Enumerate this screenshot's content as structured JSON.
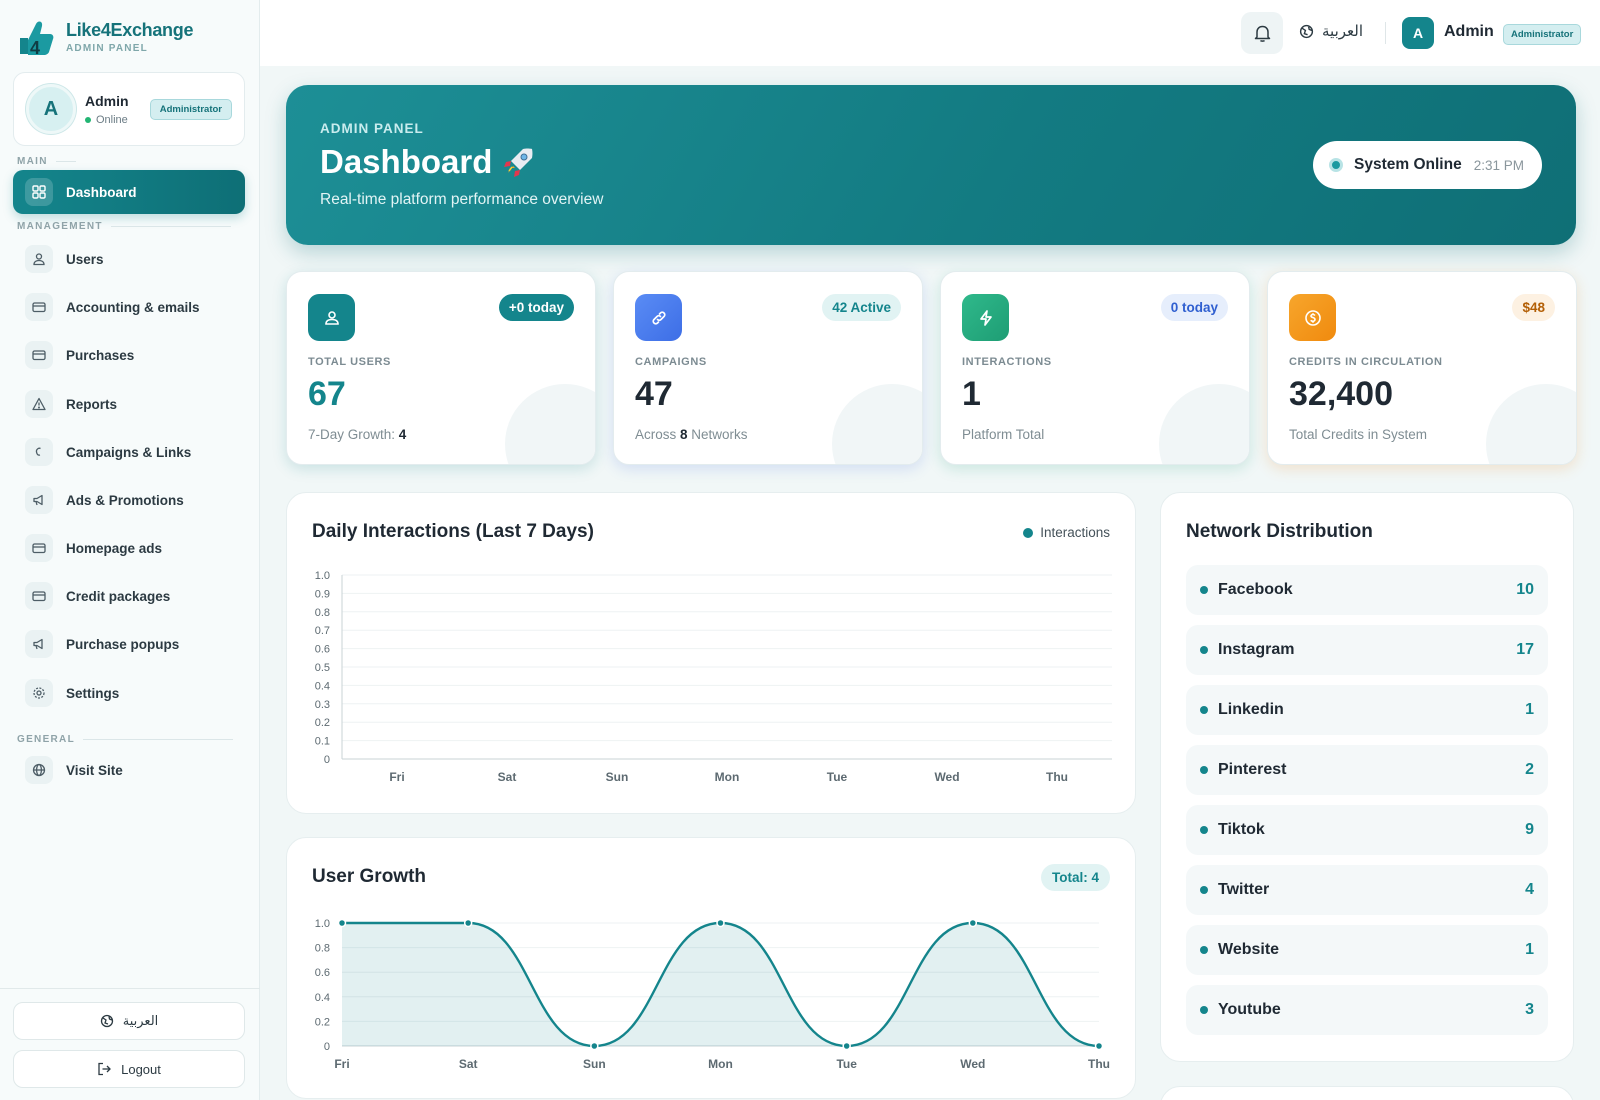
{
  "brand": {
    "name": "Like4Exchange",
    "subtitle": "ADMIN PANEL"
  },
  "profile": {
    "initial": "A",
    "name": "Admin",
    "status": "Online",
    "role": "Administrator"
  },
  "sidebar": {
    "section_main": "MAIN",
    "section_management": "MANAGEMENT",
    "section_general": "GENERAL",
    "items": [
      {
        "label": "Dashboard",
        "icon": "grid-icon",
        "active": true
      },
      {
        "label": "Users",
        "icon": "users-icon"
      },
      {
        "label": "Accounting & emails",
        "icon": "card-icon"
      },
      {
        "label": "Purchases",
        "icon": "card-icon"
      },
      {
        "label": "Reports",
        "icon": "alert-icon"
      },
      {
        "label": "Campaigns & Links",
        "icon": "link-icon"
      },
      {
        "label": "Ads & Promotions",
        "icon": "megaphone-icon"
      },
      {
        "label": "Homepage ads",
        "icon": "card-icon"
      },
      {
        "label": "Credit packages",
        "icon": "card-icon"
      },
      {
        "label": "Purchase popups",
        "icon": "megaphone-icon"
      },
      {
        "label": "Settings",
        "icon": "gear-icon"
      },
      {
        "label": "Visit Site",
        "icon": "globe-icon"
      }
    ],
    "lang_button": "العربية",
    "logout_button": "Logout"
  },
  "topbar": {
    "lang": "العربية",
    "user_initial": "A",
    "user_name": "Admin",
    "role": "Administrator"
  },
  "hero": {
    "kicker": "ADMIN PANEL",
    "title": "Dashboard",
    "subtitle": "Real-time platform performance overview",
    "status_label": "System Online",
    "status_time": "2:31 PM"
  },
  "stats": [
    {
      "label": "TOTAL USERS",
      "value": "67",
      "badge": "+0 today",
      "foot_prefix": "7-Day Growth: ",
      "foot_bold": "4",
      "foot_suffix": "",
      "icon": "users-icon",
      "accent": "#14858c"
    },
    {
      "label": "CAMPAIGNS",
      "value": "47",
      "badge": "42 Active",
      "foot_prefix": "Across ",
      "foot_bold": "8",
      "foot_suffix": " Networks",
      "icon": "link-icon",
      "accent": "#4a7cf0"
    },
    {
      "label": "INTERACTIONS",
      "value": "1",
      "badge": "0 today",
      "foot_prefix": "Platform Total",
      "foot_bold": "",
      "foot_suffix": "",
      "icon": "bolt-icon",
      "accent": "#22a37a"
    },
    {
      "label": "CREDITS IN CIRCULATION",
      "value": "32,400",
      "badge": "$48",
      "foot_prefix": "Total Credits in System",
      "foot_bold": "",
      "foot_suffix": "",
      "icon": "coin-icon",
      "accent": "#f29418"
    }
  ],
  "interactions_chart": {
    "title": "Daily Interactions (Last 7 Days)",
    "legend": "Interactions"
  },
  "growth_chart": {
    "title": "User Growth",
    "total_badge": "Total: 4"
  },
  "chart_data": [
    {
      "type": "line",
      "title": "Daily Interactions (Last 7 Days)",
      "categories": [
        "Fri",
        "Sat",
        "Sun",
        "Mon",
        "Tue",
        "Wed",
        "Thu"
      ],
      "series": [
        {
          "name": "Interactions",
          "values": [
            0,
            0,
            0,
            0,
            0,
            0,
            0
          ]
        }
      ],
      "yticks": [
        "1.0",
        "0.9",
        "0.8",
        "0.7",
        "0.6",
        "0.5",
        "0.4",
        "0.3",
        "0.2",
        "0.1",
        "0"
      ],
      "ylim": [
        0,
        1
      ],
      "grid": true,
      "legend": "top-right"
    },
    {
      "type": "area",
      "title": "User Growth",
      "categories": [
        "Fri",
        "Sat",
        "Sun",
        "Mon",
        "Tue",
        "Wed",
        "Thu"
      ],
      "series": [
        {
          "values": [
            1,
            1,
            0,
            1,
            0,
            1,
            0
          ]
        }
      ],
      "yticks": [
        "1.0",
        "0.8",
        "0.6",
        "0.4",
        "0.2",
        "0"
      ],
      "ylim": [
        0,
        1
      ],
      "grid": true
    }
  ],
  "network": {
    "title": "Network Distribution",
    "items": [
      {
        "name": "Facebook",
        "count": "10"
      },
      {
        "name": "Instagram",
        "count": "17"
      },
      {
        "name": "Linkedin",
        "count": "1"
      },
      {
        "name": "Pinterest",
        "count": "2"
      },
      {
        "name": "Tiktok",
        "count": "9"
      },
      {
        "name": "Twitter",
        "count": "4"
      },
      {
        "name": "Website",
        "count": "1"
      },
      {
        "name": "Youtube",
        "count": "3"
      }
    ]
  },
  "colors": {
    "brand": "#14858c",
    "brand_dark": "#0e6f76",
    "bg": "#f1f7f7"
  }
}
